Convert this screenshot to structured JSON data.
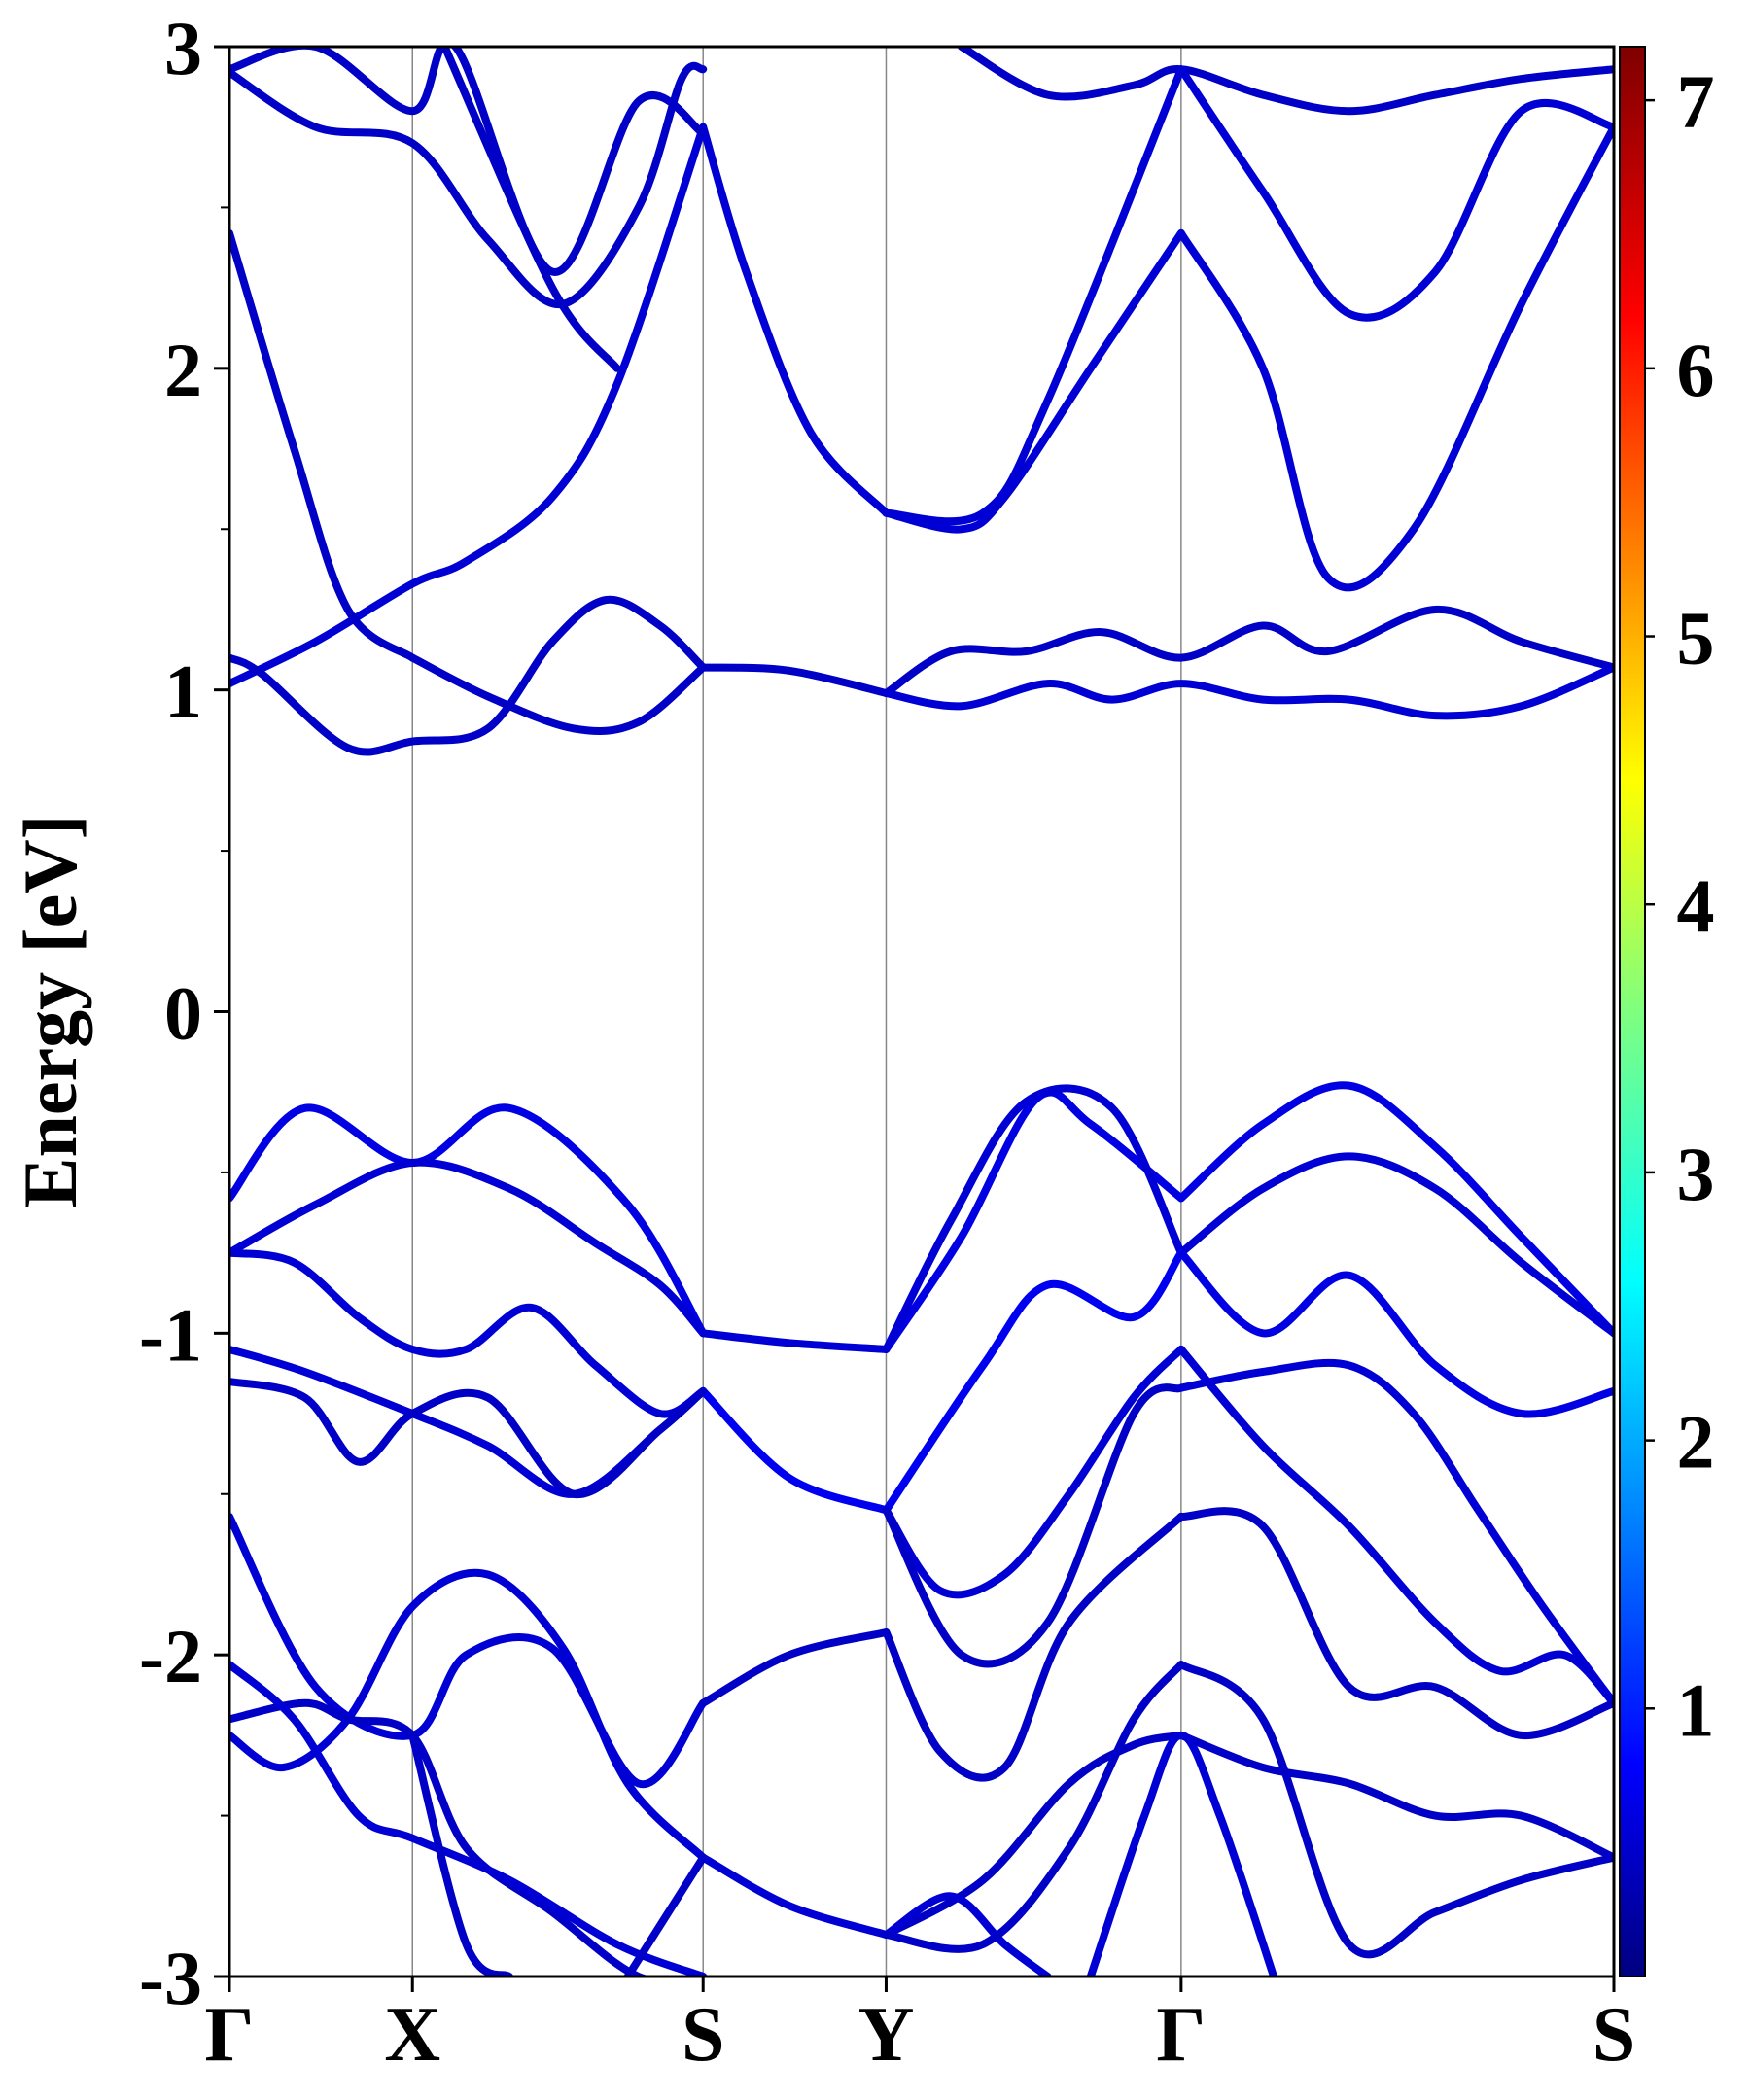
{
  "chart_data": {
    "type": "line",
    "title": "",
    "ylabel": "Energy [eV]",
    "xlabel": "",
    "ylim": [
      -3,
      3
    ],
    "yticks": [
      "-3",
      "-2",
      "-1",
      "0",
      "1",
      "2",
      "3"
    ],
    "kpath": [
      "Γ",
      "X",
      "S",
      "Y",
      "Γ",
      "S"
    ],
    "kpath_positions": [
      0,
      0.85,
      2.2,
      3.05,
      4.42,
      6.43
    ],
    "colorbar": {
      "colormap": "jet",
      "range": [
        0,
        7.2
      ],
      "ticks": [
        "1",
        "2",
        "3",
        "4",
        "5",
        "6",
        "7"
      ]
    },
    "grid": false,
    "legend": "none",
    "series": [
      {
        "x": [
          0,
          0.4,
          0.85,
          1.1,
          1.5,
          1.8,
          2.2
        ],
        "y": [
          1.02,
          1.15,
          1.33,
          1.4,
          1.6,
          1.95,
          2.75
        ],
        "weight": 0.6
      },
      {
        "x": [
          2.2,
          2.4,
          2.7,
          3.05
        ],
        "y": [
          2.75,
          2.3,
          1.8,
          1.55
        ],
        "weight": 0.6
      },
      {
        "x": [
          3.05,
          3.4,
          3.6,
          4.0,
          4.42
        ],
        "y": [
          1.55,
          1.5,
          1.6,
          2.0,
          2.42
        ],
        "weight": 0.6
      },
      {
        "x": [
          4.42,
          4.8,
          5.1,
          5.5,
          6.0,
          6.43
        ],
        "y": [
          2.42,
          2.0,
          1.35,
          1.5,
          2.2,
          2.75
        ],
        "weight": 0.6
      },
      {
        "x": [
          0,
          0.3,
          0.55,
          0.85
        ],
        "y": [
          2.42,
          1.75,
          1.25,
          1.1
        ],
        "weight": 0.5
      },
      {
        "x": [
          0.85,
          1.2,
          1.6,
          1.9,
          2.2
        ],
        "y": [
          1.1,
          0.98,
          0.88,
          0.9,
          1.07
        ],
        "weight": 0.5
      },
      {
        "x": [
          0,
          0.15,
          0.55,
          0.85,
          1.2,
          1.5,
          1.75,
          2.0,
          2.2
        ],
        "y": [
          1.1,
          1.05,
          0.82,
          0.84,
          0.88,
          1.15,
          1.28,
          1.2,
          1.07
        ],
        "weight": 0.5
      },
      {
        "x": [
          2.2,
          2.6,
          3.05
        ],
        "y": [
          1.07,
          1.06,
          0.99
        ],
        "weight": 0.5
      },
      {
        "x": [
          3.05,
          3.35,
          3.7,
          4.05,
          4.42,
          4.8,
          5.1,
          5.6,
          6.0,
          6.43
        ],
        "y": [
          0.99,
          1.12,
          1.12,
          1.18,
          1.1,
          1.2,
          1.12,
          1.25,
          1.15,
          1.07
        ],
        "weight": 0.5
      },
      {
        "x": [
          3.05,
          3.4,
          3.8,
          4.1,
          4.42,
          4.8,
          5.2,
          5.6,
          6.0,
          6.43
        ],
        "y": [
          0.99,
          0.95,
          1.02,
          0.97,
          1.02,
          0.97,
          0.97,
          0.92,
          0.95,
          1.07
        ],
        "weight": 0.6
      },
      {
        "x": [
          0,
          0.4,
          0.85,
          1.2,
          1.55,
          1.9,
          2.1,
          2.2
        ],
        "y": [
          2.92,
          2.75,
          2.7,
          2.4,
          2.2,
          2.5,
          2.9,
          2.93
        ],
        "weight": 0.5
      },
      {
        "x": [
          0,
          0.4,
          0.85,
          1.05,
          1.5,
          1.9,
          2.2
        ],
        "y": [
          2.93,
          3.0,
          2.8,
          3.0,
          2.3,
          2.83,
          2.73
        ],
        "weight": 0.5
      },
      {
        "x": [
          1.0,
          1.5,
          1.8
        ],
        "y": [
          3.0,
          2.25,
          2.0
        ],
        "weight": 0.5
      },
      {
        "x": [
          3.4,
          3.8,
          4.2,
          4.42,
          4.8,
          5.2,
          5.6,
          6.0,
          6.43
        ],
        "y": [
          3.0,
          2.85,
          2.88,
          2.93,
          2.85,
          2.8,
          2.85,
          2.9,
          2.93
        ],
        "weight": 0.5
      },
      {
        "x": [
          3.05,
          3.5,
          3.8,
          4.42
        ],
        "y": [
          1.55,
          1.55,
          1.9,
          2.93
        ],
        "weight": 0.6
      },
      {
        "x": [
          4.42,
          4.8,
          5.2,
          5.6,
          6.0,
          6.43
        ],
        "y": [
          2.93,
          2.55,
          2.17,
          2.3,
          2.8,
          2.75
        ],
        "weight": 0.6
      },
      {
        "x": [
          0,
          0.35,
          0.85,
          1.3,
          1.85,
          2.2
        ],
        "y": [
          -0.58,
          -0.3,
          -0.47,
          -0.3,
          -0.6,
          -1.0
        ],
        "weight": 0.7
      },
      {
        "x": [
          2.2,
          2.6,
          3.05
        ],
        "y": [
          -1.0,
          -1.03,
          -1.05
        ],
        "weight": 0.6
      },
      {
        "x": [
          3.05,
          3.4,
          3.75,
          4.0,
          4.42
        ],
        "y": [
          -1.05,
          -0.7,
          -0.27,
          -0.35,
          -0.58
        ],
        "weight": 0.7
      },
      {
        "x": [
          4.42,
          4.8,
          5.2,
          5.6,
          6.0,
          6.43
        ],
        "y": [
          -0.58,
          -0.35,
          -0.23,
          -0.42,
          -0.7,
          -1.0
        ],
        "weight": 0.7
      },
      {
        "x": [
          0,
          0.4,
          0.85,
          1.3,
          1.7,
          2.0,
          2.2
        ],
        "y": [
          -0.75,
          -0.6,
          -0.47,
          -0.55,
          -0.72,
          -0.85,
          -1.0
        ],
        "weight": 0.6
      },
      {
        "x": [
          3.05,
          3.35,
          3.7,
          4.1,
          4.42
        ],
        "y": [
          -1.05,
          -0.65,
          -0.28,
          -0.3,
          -0.75
        ],
        "weight": 0.6
      },
      {
        "x": [
          4.42,
          4.8,
          5.2,
          5.6,
          6.0,
          6.43
        ],
        "y": [
          -0.75,
          -0.55,
          -0.45,
          -0.55,
          -0.78,
          -1.0
        ],
        "weight": 0.6
      },
      {
        "x": [
          0,
          0.3,
          0.6,
          0.85,
          1.1,
          1.4,
          1.7,
          2.0,
          2.2
        ],
        "y": [
          -0.75,
          -0.78,
          -0.95,
          -1.05,
          -1.05,
          -0.92,
          -1.1,
          -1.25,
          -1.18
        ],
        "weight": 0.6
      },
      {
        "x": [
          2.2,
          2.6,
          3.05
        ],
        "y": [
          -1.18,
          -1.45,
          -1.55
        ],
        "weight": 0.8
      },
      {
        "x": [
          3.05,
          3.5,
          3.8,
          4.2,
          4.42
        ],
        "y": [
          -1.55,
          -1.1,
          -0.85,
          -0.95,
          -0.75
        ],
        "weight": 0.8
      },
      {
        "x": [
          4.42,
          4.8,
          5.2,
          5.6,
          6.0,
          6.43
        ],
        "y": [
          -0.75,
          -1.0,
          -0.82,
          -1.1,
          -1.25,
          -1.18
        ],
        "weight": 0.7
      },
      {
        "x": [
          0,
          0.35,
          0.85,
          1.2,
          1.6,
          2.0,
          2.2
        ],
        "y": [
          -1.05,
          -1.12,
          -1.25,
          -1.35,
          -1.5,
          -1.3,
          -1.18
        ],
        "weight": 0.6
      },
      {
        "x": [
          0,
          0.35,
          0.6,
          0.85,
          1.2,
          1.6,
          2.0,
          2.2
        ],
        "y": [
          -1.15,
          -1.2,
          -1.4,
          -1.25,
          -1.2,
          -1.5,
          -1.3,
          -1.18
        ],
        "weight": 0.5
      },
      {
        "x": [
          3.05,
          3.3,
          3.6,
          3.9,
          4.2,
          4.42
        ],
        "y": [
          -1.55,
          -1.8,
          -1.75,
          -1.5,
          -1.2,
          -1.05
        ],
        "weight": 0.6
      },
      {
        "x": [
          4.42,
          4.8,
          5.2,
          5.6,
          5.9,
          6.2,
          6.43
        ],
        "y": [
          -1.05,
          -1.35,
          -1.6,
          -1.9,
          -2.05,
          -2.0,
          -2.15
        ],
        "weight": 0.6
      },
      {
        "x": [
          3.05,
          3.4,
          3.8,
          4.2,
          4.42
        ],
        "y": [
          -1.55,
          -2.0,
          -1.9,
          -1.25,
          -1.17
        ],
        "weight": 0.5
      },
      {
        "x": [
          4.42,
          4.8,
          5.2,
          5.5,
          5.8,
          6.1,
          6.43
        ],
        "y": [
          -1.17,
          -1.12,
          -1.1,
          -1.25,
          -1.55,
          -1.85,
          -2.15
        ],
        "weight": 0.6
      },
      {
        "x": [
          0,
          0.4,
          0.85,
          1.1,
          1.5,
          1.9,
          2.2
        ],
        "y": [
          -1.57,
          -2.1,
          -2.25,
          -2.0,
          -1.98,
          -2.4,
          -2.15
        ],
        "weight": 0.6
      },
      {
        "x": [
          2.2,
          2.6,
          3.05
        ],
        "y": [
          -2.15,
          -2.0,
          -1.93
        ],
        "weight": 0.5
      },
      {
        "x": [
          3.05,
          3.3,
          3.6,
          3.9,
          4.42
        ],
        "y": [
          -1.93,
          -2.3,
          -2.35,
          -1.9,
          -1.57
        ],
        "weight": 0.5
      },
      {
        "x": [
          4.42,
          4.8,
          5.2,
          5.6,
          6.0,
          6.43
        ],
        "y": [
          -1.57,
          -1.6,
          -2.1,
          -2.1,
          -2.25,
          -2.15
        ],
        "weight": 0.5
      },
      {
        "x": [
          0,
          0.25,
          0.55,
          0.85,
          1.2,
          1.55,
          1.85,
          2.2
        ],
        "y": [
          -2.25,
          -2.35,
          -2.2,
          -1.85,
          -1.75,
          -1.98,
          -2.4,
          -2.63
        ],
        "weight": 0.6
      },
      {
        "x": [
          2.2,
          2.6,
          3.05
        ],
        "y": [
          -2.63,
          -2.78,
          -2.87
        ],
        "weight": 0.6
      },
      {
        "x": [
          3.05,
          3.5,
          3.9,
          4.2,
          4.42
        ],
        "y": [
          -2.87,
          -2.7,
          -2.4,
          -2.28,
          -2.25
        ],
        "weight": 0.5
      },
      {
        "x": [
          4.42,
          4.8,
          5.2,
          5.6,
          6.0,
          6.43
        ],
        "y": [
          -2.25,
          -2.35,
          -2.4,
          -2.5,
          -2.5,
          -2.63
        ],
        "weight": 0.5
      },
      {
        "x": [
          0,
          0.35,
          0.55,
          0.85,
          1.1,
          1.5,
          1.9,
          2.2
        ],
        "y": [
          -2.2,
          -2.15,
          -2.2,
          -2.25,
          -2.6,
          -2.8,
          -3.0,
          -3.0
        ],
        "weight": 0.5
      },
      {
        "x": [
          0,
          0.3,
          0.6,
          0.85,
          1.3,
          1.8,
          2.2
        ],
        "y": [
          -2.03,
          -2.2,
          -2.5,
          -2.57,
          -2.7,
          -2.9,
          -3.0
        ],
        "weight": 0.6
      },
      {
        "x": [
          1.85,
          2.2
        ],
        "y": [
          -3.0,
          -2.63
        ],
        "weight": 0.5
      },
      {
        "x": [
          3.05,
          3.35,
          3.6,
          3.8
        ],
        "y": [
          -2.87,
          -2.75,
          -2.9,
          -3.0
        ],
        "weight": 0.6
      },
      {
        "x": [
          3.05,
          3.5,
          3.9,
          4.2,
          4.42
        ],
        "y": [
          -2.87,
          -2.9,
          -2.6,
          -2.2,
          -2.03
        ],
        "weight": 0.5
      },
      {
        "x": [
          4.42,
          4.8,
          5.2,
          5.6,
          6.0,
          6.43
        ],
        "y": [
          -2.03,
          -2.2,
          -2.9,
          -2.8,
          -2.7,
          -2.63
        ],
        "weight": 0.5
      },
      {
        "x": [
          4.0,
          4.25,
          4.42,
          4.6,
          4.85
        ],
        "y": [
          -3.0,
          -2.5,
          -2.25,
          -2.5,
          -3.0
        ],
        "weight": 0.6
      },
      {
        "x": [
          0.85,
          1.1,
          1.3
        ],
        "y": [
          -2.25,
          -2.9,
          -3.0
        ],
        "weight": 0.5
      }
    ]
  }
}
